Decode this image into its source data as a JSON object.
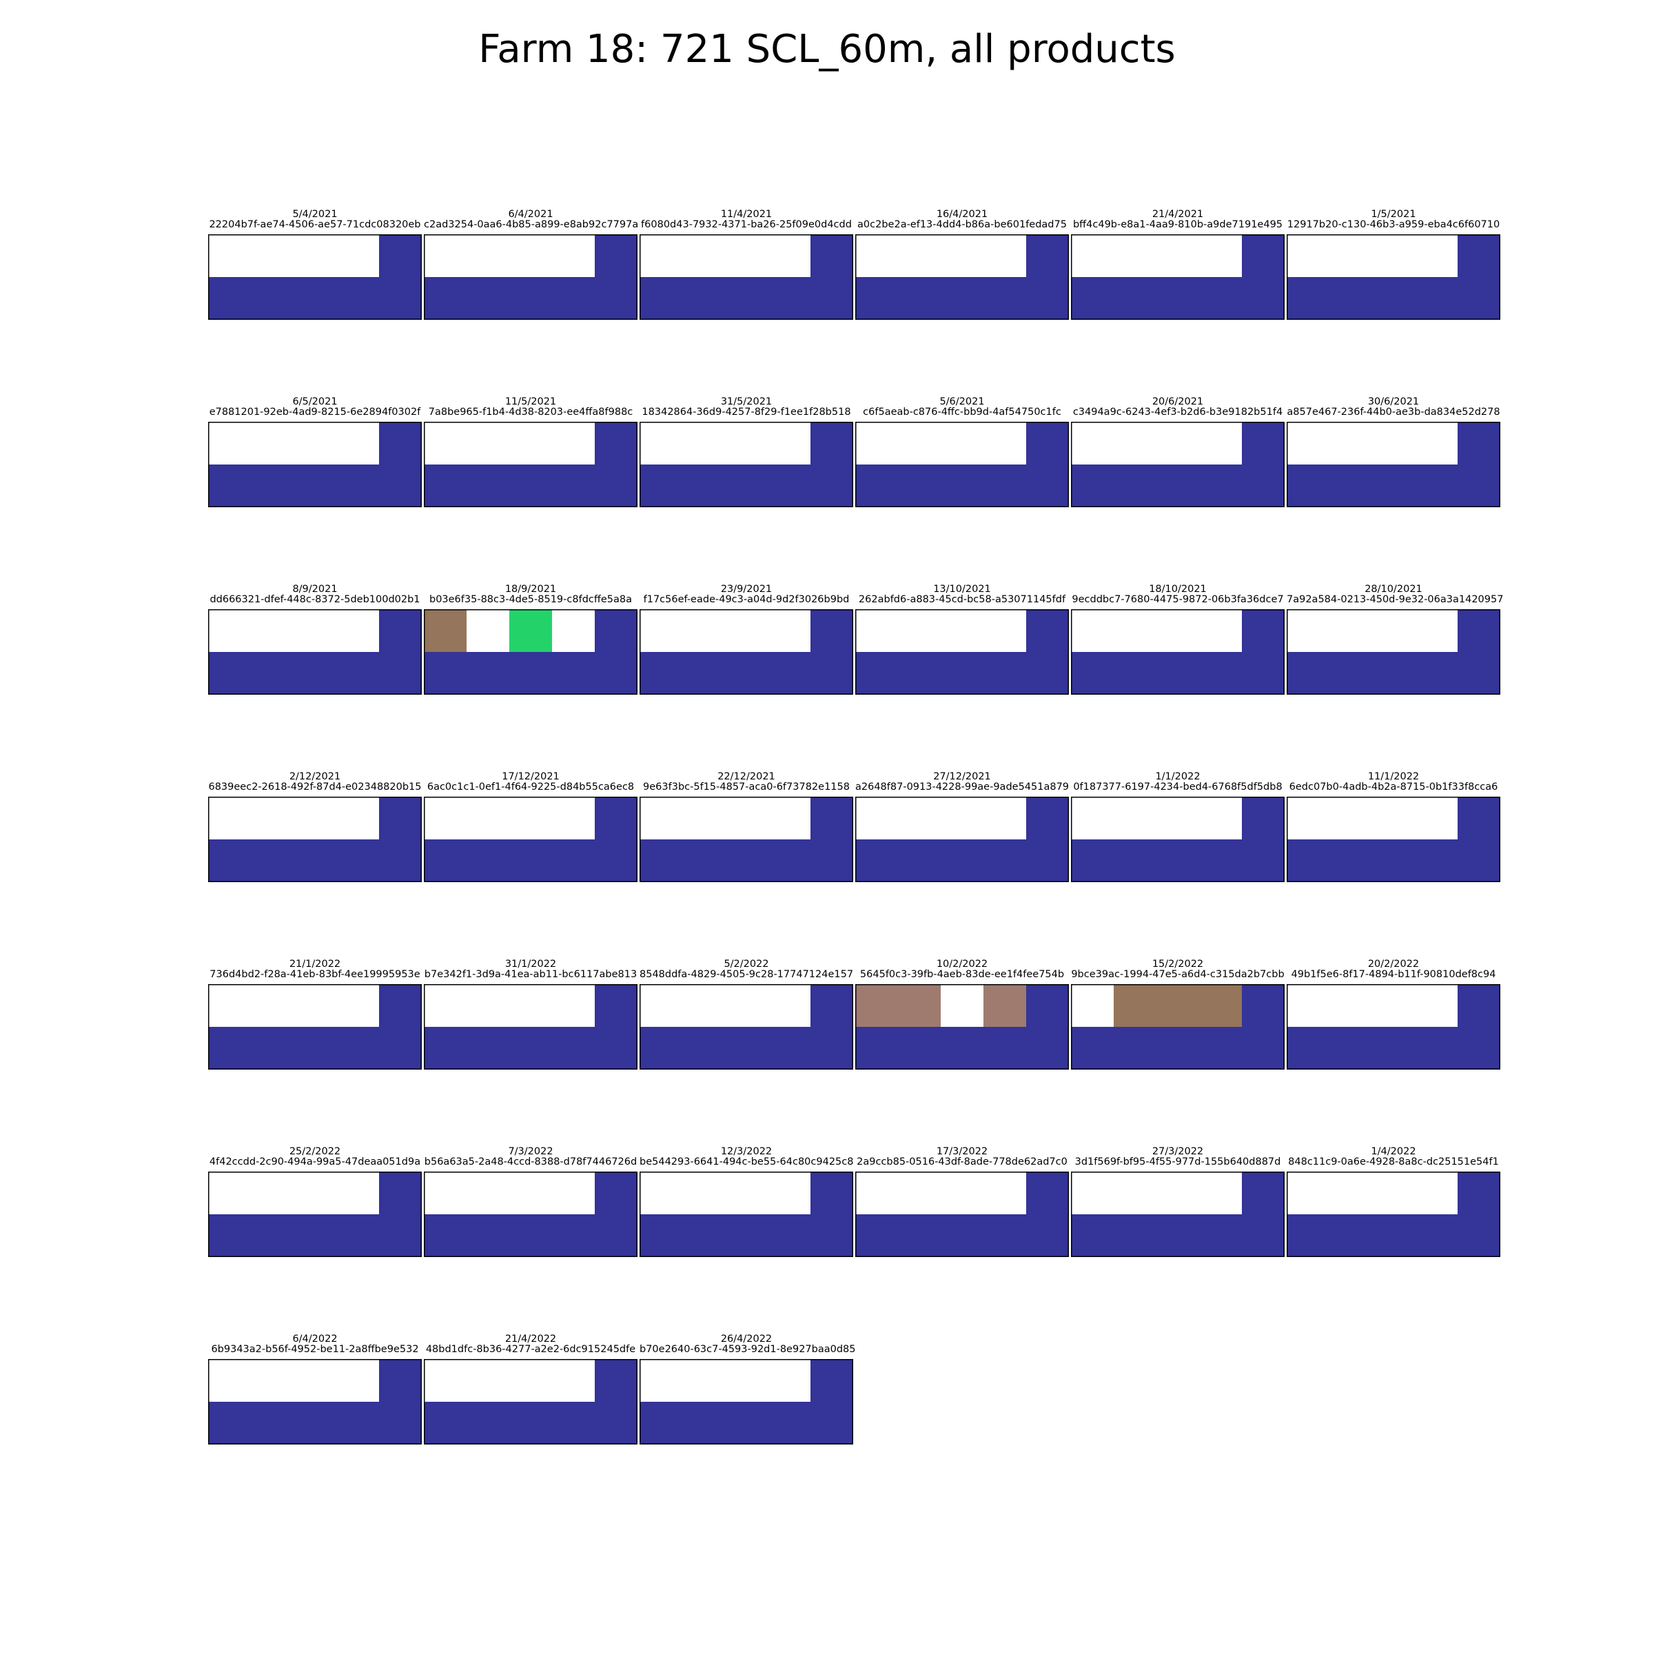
{
  "title": "Farm 18: 721 SCL_60m, all products",
  "chart_data": {
    "type": "heatmap",
    "title": "Farm 18: 721 SCL_60m, all products",
    "grid": {
      "rows": 2,
      "cols": 5
    },
    "legend": "none",
    "colors": {
      "nodata": "#ffffff",
      "water": "#343499",
      "dark": "#95755B",
      "greyish": "#9F7A6F",
      "veg": "#23D36A"
    },
    "panels": [
      {
        "date": "5/4/2021",
        "id": "22204b7f-ae74-4506-ae57-71cdc08320eb",
        "cells": [
          [
            "nodata",
            "nodata",
            "nodata",
            "nodata",
            "water"
          ],
          [
            "water",
            "water",
            "water",
            "water",
            "water"
          ]
        ]
      },
      {
        "date": "6/4/2021",
        "id": "c2ad3254-0aa6-4b85-a899-e8ab92c7797a",
        "cells": [
          [
            "nodata",
            "nodata",
            "nodata",
            "nodata",
            "water"
          ],
          [
            "water",
            "water",
            "water",
            "water",
            "water"
          ]
        ]
      },
      {
        "date": "11/4/2021",
        "id": "f6080d43-7932-4371-ba26-25f09e0d4cdd",
        "cells": [
          [
            "nodata",
            "nodata",
            "nodata",
            "nodata",
            "water"
          ],
          [
            "water",
            "water",
            "water",
            "water",
            "water"
          ]
        ]
      },
      {
        "date": "16/4/2021",
        "id": "a0c2be2a-ef13-4dd4-b86a-be601fedad75",
        "cells": [
          [
            "nodata",
            "nodata",
            "nodata",
            "nodata",
            "water"
          ],
          [
            "water",
            "water",
            "water",
            "water",
            "water"
          ]
        ]
      },
      {
        "date": "21/4/2021",
        "id": "bff4c49b-e8a1-4aa9-810b-a9de7191e495",
        "cells": [
          [
            "nodata",
            "nodata",
            "nodata",
            "nodata",
            "water"
          ],
          [
            "water",
            "water",
            "water",
            "water",
            "water"
          ]
        ]
      },
      {
        "date": "1/5/2021",
        "id": "12917b20-c130-46b3-a959-eba4c6f60710",
        "cells": [
          [
            "nodata",
            "nodata",
            "nodata",
            "nodata",
            "water"
          ],
          [
            "water",
            "water",
            "water",
            "water",
            "water"
          ]
        ]
      },
      {
        "date": "6/5/2021",
        "id": "e7881201-92eb-4ad9-8215-6e2894f0302f",
        "cells": [
          [
            "nodata",
            "nodata",
            "nodata",
            "nodata",
            "water"
          ],
          [
            "water",
            "water",
            "water",
            "water",
            "water"
          ]
        ]
      },
      {
        "date": "11/5/2021",
        "id": "7a8be965-f1b4-4d38-8203-ee4ffa8f988c",
        "cells": [
          [
            "nodata",
            "nodata",
            "nodata",
            "nodata",
            "water"
          ],
          [
            "water",
            "water",
            "water",
            "water",
            "water"
          ]
        ]
      },
      {
        "date": "31/5/2021",
        "id": "18342864-36d9-4257-8f29-f1ee1f28b518",
        "cells": [
          [
            "nodata",
            "nodata",
            "nodata",
            "nodata",
            "water"
          ],
          [
            "water",
            "water",
            "water",
            "water",
            "water"
          ]
        ]
      },
      {
        "date": "5/6/2021",
        "id": "c6f5aeab-c876-4ffc-bb9d-4af54750c1fc",
        "cells": [
          [
            "nodata",
            "nodata",
            "nodata",
            "nodata",
            "water"
          ],
          [
            "water",
            "water",
            "water",
            "water",
            "water"
          ]
        ]
      },
      {
        "date": "20/6/2021",
        "id": "c3494a9c-6243-4ef3-b2d6-b3e9182b51f4",
        "cells": [
          [
            "nodata",
            "nodata",
            "nodata",
            "nodata",
            "water"
          ],
          [
            "water",
            "water",
            "water",
            "water",
            "water"
          ]
        ]
      },
      {
        "date": "30/6/2021",
        "id": "a857e467-236f-44b0-ae3b-da834e52d278",
        "cells": [
          [
            "nodata",
            "nodata",
            "nodata",
            "nodata",
            "water"
          ],
          [
            "water",
            "water",
            "water",
            "water",
            "water"
          ]
        ]
      },
      {
        "date": "8/9/2021",
        "id": "dd666321-dfef-448c-8372-5deb100d02b1",
        "cells": [
          [
            "nodata",
            "nodata",
            "nodata",
            "nodata",
            "water"
          ],
          [
            "water",
            "water",
            "water",
            "water",
            "water"
          ]
        ]
      },
      {
        "date": "18/9/2021",
        "id": "b03e6f35-88c3-4de5-8519-c8fdcffe5a8a",
        "cells": [
          [
            "dark",
            "nodata",
            "veg",
            "nodata",
            "water"
          ],
          [
            "water",
            "water",
            "water",
            "water",
            "water"
          ]
        ]
      },
      {
        "date": "23/9/2021",
        "id": "f17c56ef-eade-49c3-a04d-9d2f3026b9bd",
        "cells": [
          [
            "nodata",
            "nodata",
            "nodata",
            "nodata",
            "water"
          ],
          [
            "water",
            "water",
            "water",
            "water",
            "water"
          ]
        ]
      },
      {
        "date": "13/10/2021",
        "id": "262abfd6-a883-45cd-bc58-a53071145fdf",
        "cells": [
          [
            "nodata",
            "nodata",
            "nodata",
            "nodata",
            "water"
          ],
          [
            "water",
            "water",
            "water",
            "water",
            "water"
          ]
        ]
      },
      {
        "date": "18/10/2021",
        "id": "9ecddbc7-7680-4475-9872-06b3fa36dce7",
        "cells": [
          [
            "nodata",
            "nodata",
            "nodata",
            "nodata",
            "water"
          ],
          [
            "water",
            "water",
            "water",
            "water",
            "water"
          ]
        ]
      },
      {
        "date": "28/10/2021",
        "id": "7a92a584-0213-450d-9e32-06a3a1420957",
        "cells": [
          [
            "nodata",
            "nodata",
            "nodata",
            "nodata",
            "water"
          ],
          [
            "water",
            "water",
            "water",
            "water",
            "water"
          ]
        ]
      },
      {
        "date": "2/12/2021",
        "id": "6839eec2-2618-492f-87d4-e02348820b15",
        "cells": [
          [
            "nodata",
            "nodata",
            "nodata",
            "nodata",
            "water"
          ],
          [
            "water",
            "water",
            "water",
            "water",
            "water"
          ]
        ]
      },
      {
        "date": "17/12/2021",
        "id": "6ac0c1c1-0ef1-4f64-9225-d84b55ca6ec8",
        "cells": [
          [
            "nodata",
            "nodata",
            "nodata",
            "nodata",
            "water"
          ],
          [
            "water",
            "water",
            "water",
            "water",
            "water"
          ]
        ]
      },
      {
        "date": "22/12/2021",
        "id": "9e63f3bc-5f15-4857-aca0-6f73782e1158",
        "cells": [
          [
            "nodata",
            "nodata",
            "nodata",
            "nodata",
            "water"
          ],
          [
            "water",
            "water",
            "water",
            "water",
            "water"
          ]
        ]
      },
      {
        "date": "27/12/2021",
        "id": "a2648f87-0913-4228-99ae-9ade5451a879",
        "cells": [
          [
            "nodata",
            "nodata",
            "nodata",
            "nodata",
            "water"
          ],
          [
            "water",
            "water",
            "water",
            "water",
            "water"
          ]
        ]
      },
      {
        "date": "1/1/2022",
        "id": "0f187377-6197-4234-bed4-6768f5df5db8",
        "cells": [
          [
            "nodata",
            "nodata",
            "nodata",
            "nodata",
            "water"
          ],
          [
            "water",
            "water",
            "water",
            "water",
            "water"
          ]
        ]
      },
      {
        "date": "11/1/2022",
        "id": "6edc07b0-4adb-4b2a-8715-0b1f33f8cca6",
        "cells": [
          [
            "nodata",
            "nodata",
            "nodata",
            "nodata",
            "water"
          ],
          [
            "water",
            "water",
            "water",
            "water",
            "water"
          ]
        ]
      },
      {
        "date": "21/1/2022",
        "id": "736d4bd2-f28a-41eb-83bf-4ee19995953e",
        "cells": [
          [
            "nodata",
            "nodata",
            "nodata",
            "nodata",
            "water"
          ],
          [
            "water",
            "water",
            "water",
            "water",
            "water"
          ]
        ]
      },
      {
        "date": "31/1/2022",
        "id": "b7e342f1-3d9a-41ea-ab11-bc6117abe813",
        "cells": [
          [
            "nodata",
            "nodata",
            "nodata",
            "nodata",
            "water"
          ],
          [
            "water",
            "water",
            "water",
            "water",
            "water"
          ]
        ]
      },
      {
        "date": "5/2/2022",
        "id": "8548ddfa-4829-4505-9c28-17747124e157",
        "cells": [
          [
            "nodata",
            "nodata",
            "nodata",
            "nodata",
            "water"
          ],
          [
            "water",
            "water",
            "water",
            "water",
            "water"
          ]
        ]
      },
      {
        "date": "10/2/2022",
        "id": "5645f0c3-39fb-4aeb-83de-ee1f4fee754b",
        "cells": [
          [
            "greyish",
            "greyish",
            "nodata",
            "greyish",
            "water"
          ],
          [
            "water",
            "water",
            "water",
            "water",
            "water"
          ]
        ]
      },
      {
        "date": "15/2/2022",
        "id": "9bce39ac-1994-47e5-a6d4-c315da2b7cbb",
        "cells": [
          [
            "nodata",
            "dark",
            "dark",
            "dark",
            "water"
          ],
          [
            "water",
            "water",
            "water",
            "water",
            "water"
          ]
        ]
      },
      {
        "date": "20/2/2022",
        "id": "49b1f5e6-8f17-4894-b11f-90810def8c94",
        "cells": [
          [
            "nodata",
            "nodata",
            "nodata",
            "nodata",
            "water"
          ],
          [
            "water",
            "water",
            "water",
            "water",
            "water"
          ]
        ]
      },
      {
        "date": "25/2/2022",
        "id": "4f42ccdd-2c90-494a-99a5-47deaa051d9a",
        "cells": [
          [
            "nodata",
            "nodata",
            "nodata",
            "nodata",
            "water"
          ],
          [
            "water",
            "water",
            "water",
            "water",
            "water"
          ]
        ]
      },
      {
        "date": "7/3/2022",
        "id": "b56a63a5-2a48-4ccd-8388-d78f7446726d",
        "cells": [
          [
            "nodata",
            "nodata",
            "nodata",
            "nodata",
            "water"
          ],
          [
            "water",
            "water",
            "water",
            "water",
            "water"
          ]
        ]
      },
      {
        "date": "12/3/2022",
        "id": "be544293-6641-494c-be55-64c80c9425c8",
        "cells": [
          [
            "nodata",
            "nodata",
            "nodata",
            "nodata",
            "water"
          ],
          [
            "water",
            "water",
            "water",
            "water",
            "water"
          ]
        ]
      },
      {
        "date": "17/3/2022",
        "id": "2a9ccb85-0516-43df-8ade-778de62ad7c0",
        "cells": [
          [
            "nodata",
            "nodata",
            "nodata",
            "nodata",
            "water"
          ],
          [
            "water",
            "water",
            "water",
            "water",
            "water"
          ]
        ]
      },
      {
        "date": "27/3/2022",
        "id": "3d1f569f-bf95-4f55-977d-155b640d887d",
        "cells": [
          [
            "nodata",
            "nodata",
            "nodata",
            "nodata",
            "water"
          ],
          [
            "water",
            "water",
            "water",
            "water",
            "water"
          ]
        ]
      },
      {
        "date": "1/4/2022",
        "id": "848c11c9-0a6e-4928-8a8c-dc25151e54f1",
        "cells": [
          [
            "nodata",
            "nodata",
            "nodata",
            "nodata",
            "water"
          ],
          [
            "water",
            "water",
            "water",
            "water",
            "water"
          ]
        ]
      },
      {
        "date": "6/4/2022",
        "id": "6b9343a2-b56f-4952-be11-2a8ffbe9e532",
        "cells": [
          [
            "nodata",
            "nodata",
            "nodata",
            "nodata",
            "water"
          ],
          [
            "water",
            "water",
            "water",
            "water",
            "water"
          ]
        ]
      },
      {
        "date": "21/4/2022",
        "id": "48bd1dfc-8b36-4277-a2e2-6dc915245dfe",
        "cells": [
          [
            "nodata",
            "nodata",
            "nodata",
            "nodata",
            "water"
          ],
          [
            "water",
            "water",
            "water",
            "water",
            "water"
          ]
        ]
      },
      {
        "date": "26/4/2022",
        "id": "b70e2640-63c7-4593-92d1-8e927baa0d85",
        "cells": [
          [
            "nodata",
            "nodata",
            "nodata",
            "nodata",
            "water"
          ],
          [
            "water",
            "water",
            "water",
            "water",
            "water"
          ]
        ]
      }
    ]
  }
}
